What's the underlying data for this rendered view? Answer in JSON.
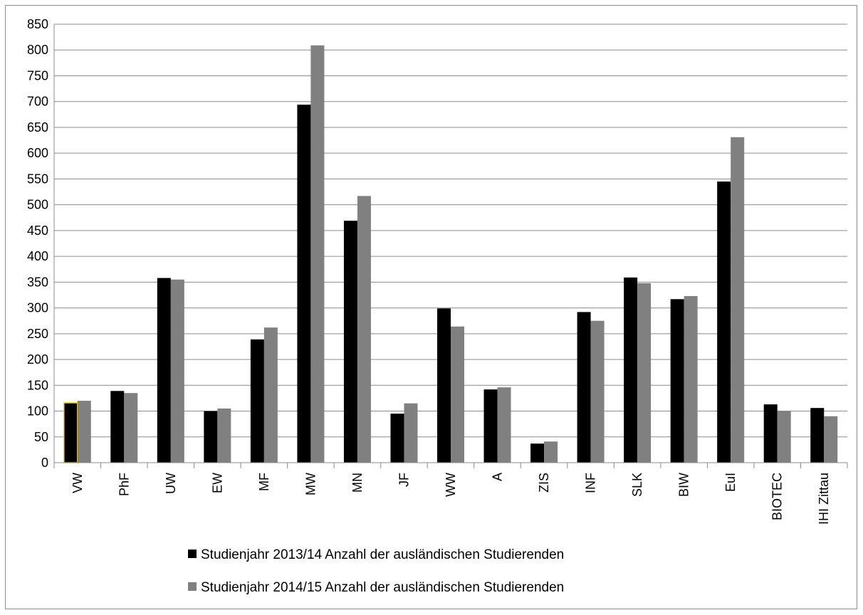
{
  "chart_data": {
    "type": "bar",
    "categories": [
      "VW",
      "PhF",
      "UW",
      "EW",
      "MF",
      "MW",
      "MN",
      "JF",
      "WW",
      "A",
      "ZIS",
      "INF",
      "SLK",
      "BIW",
      "EuI",
      "BIOTEC",
      "IHI Zittau"
    ],
    "series": [
      {
        "name": "Studienjahr 2013/14 Anzahl der  ausländischen Studierenden",
        "color": "#000000",
        "values": [
          116,
          139,
          358,
          100,
          239,
          694,
          469,
          95,
          299,
          142,
          37,
          292,
          359,
          317,
          545,
          113,
          106
        ]
      },
      {
        "name": "Studienjahr 2014/15 Anzahl der  ausländischen Studierenden",
        "color": "#808080",
        "values": [
          120,
          135,
          355,
          105,
          262,
          809,
          517,
          115,
          264,
          146,
          41,
          275,
          348,
          323,
          631,
          100,
          90
        ]
      }
    ],
    "ylim": [
      0,
      850
    ],
    "ytick_step": 50,
    "grid": true,
    "legend_position": "bottom",
    "highlight_color": "#ffd700"
  }
}
